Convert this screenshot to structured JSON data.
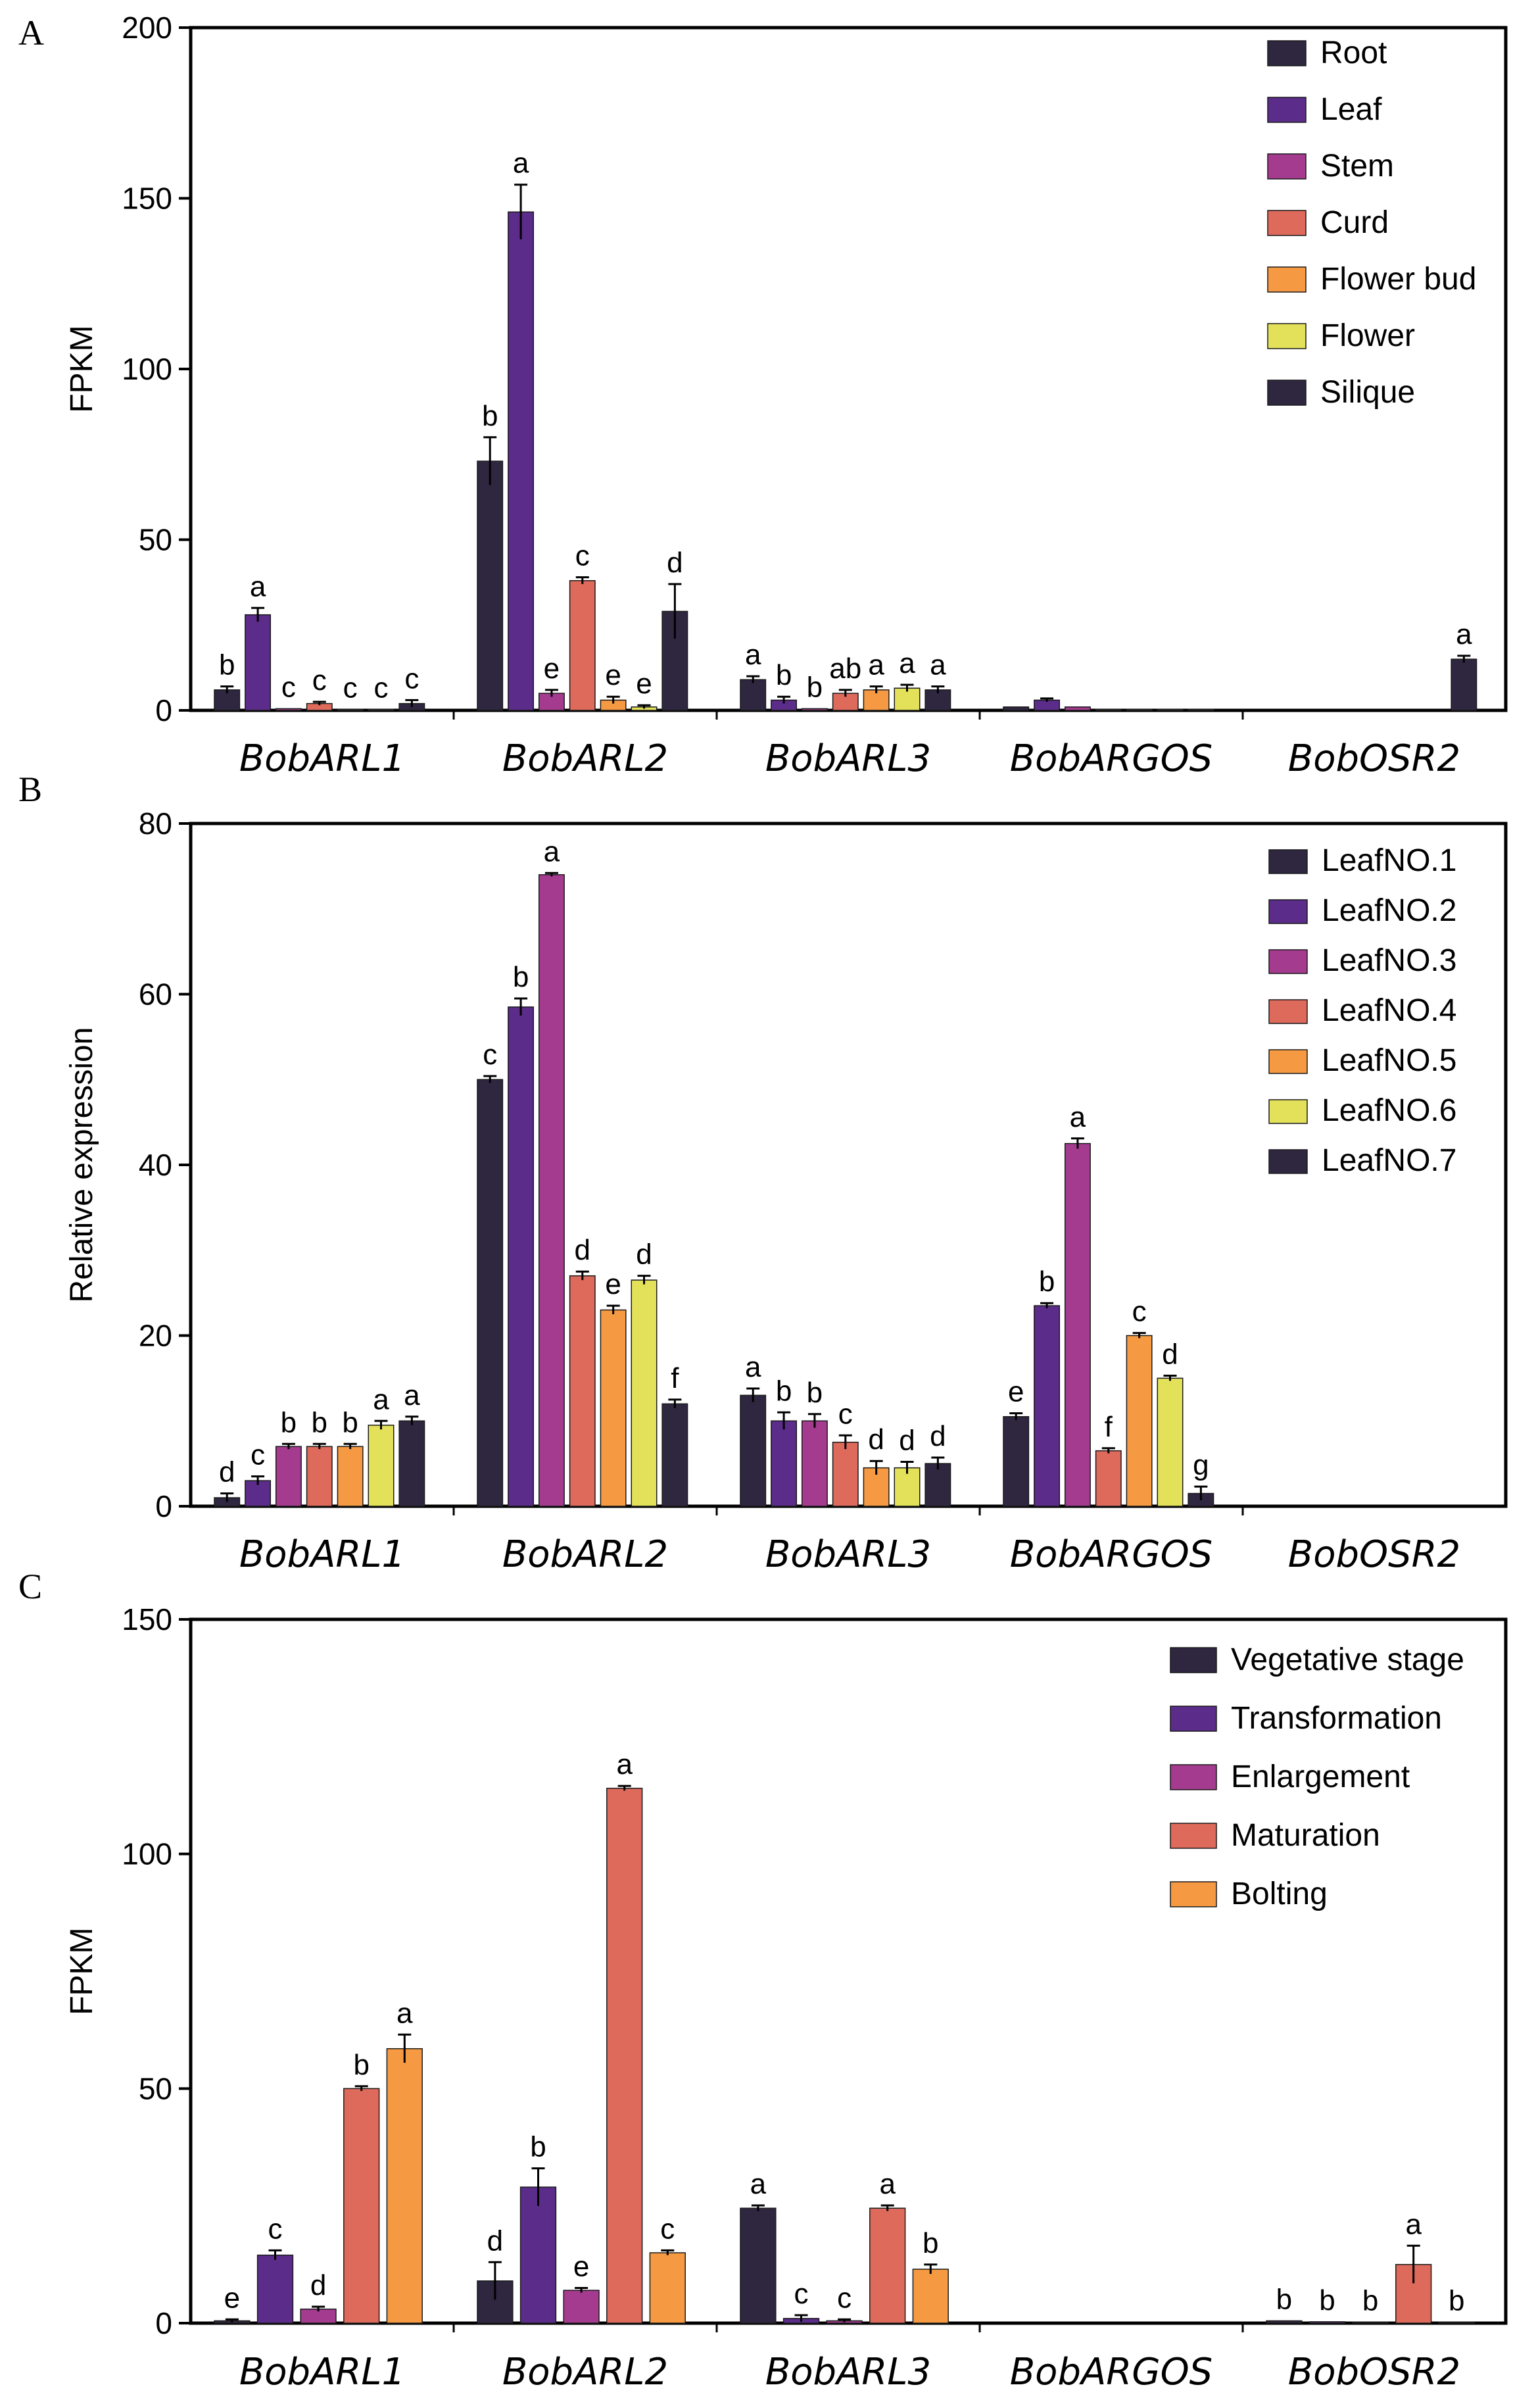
{
  "chart_data": [
    {
      "panel": "A",
      "type": "bar",
      "ylabel": "FPKM",
      "ylim": [
        0,
        200
      ],
      "yticks": [
        0,
        50,
        100,
        150,
        200
      ],
      "categories": [
        "BobARL1",
        "BobARL2",
        "BobARL3",
        "BobARGOS",
        "BobOSR2"
      ],
      "legend_position": "top-right",
      "series": [
        {
          "name": "Root",
          "color": "#2f2640",
          "values": [
            6,
            73,
            9,
            1,
            0
          ],
          "errors": [
            1,
            7,
            1,
            0,
            0
          ],
          "letters": [
            "b",
            "b",
            "a",
            "",
            ""
          ]
        },
        {
          "name": "Leaf",
          "color": "#5b2c8a",
          "values": [
            28,
            146,
            3,
            3,
            0
          ],
          "errors": [
            2,
            8,
            1,
            0.5,
            0
          ],
          "letters": [
            "a",
            "a",
            "b",
            "",
            ""
          ]
        },
        {
          "name": "Stem",
          "color": "#a43b8f",
          "values": [
            0.5,
            5,
            0.5,
            1,
            0
          ],
          "errors": [
            0,
            1,
            0,
            0,
            0
          ],
          "letters": [
            "c",
            "e",
            "b",
            "",
            ""
          ]
        },
        {
          "name": "Curd",
          "color": "#de6a5c",
          "values": [
            2,
            38,
            5,
            0.3,
            0
          ],
          "errors": [
            0.5,
            1,
            1,
            0,
            0
          ],
          "letters": [
            "c",
            "c",
            "ab",
            "",
            ""
          ]
        },
        {
          "name": "Flower bud",
          "color": "#f59a42",
          "values": [
            0.3,
            3,
            6,
            0.3,
            0
          ],
          "errors": [
            0,
            1,
            1,
            0,
            0
          ],
          "letters": [
            "c",
            "e",
            "a",
            "",
            ""
          ]
        },
        {
          "name": "Flower",
          "color": "#e3e15a",
          "values": [
            0.3,
            1,
            6.5,
            0.3,
            0
          ],
          "errors": [
            0,
            0.5,
            1,
            0,
            0
          ],
          "letters": [
            "c",
            "e",
            "a",
            "",
            ""
          ]
        },
        {
          "name": "Silique",
          "color": "#2f2640",
          "values": [
            2,
            29,
            6,
            0.3,
            15
          ],
          "errors": [
            1,
            8,
            1,
            0,
            1
          ],
          "letters": [
            "c",
            "d",
            "a",
            "",
            "a"
          ]
        }
      ]
    },
    {
      "panel": "B",
      "type": "bar",
      "ylabel": "Relative expression",
      "ylim": [
        0,
        80
      ],
      "yticks": [
        0,
        20,
        40,
        60,
        80
      ],
      "categories": [
        "BobARL1",
        "BobARL2",
        "BobARL3",
        "BobARGOS",
        "BobOSR2"
      ],
      "legend_position": "top-right",
      "series": [
        {
          "name": "LeafNO.1",
          "color": "#2f2640",
          "values": [
            1,
            50,
            13,
            10.5,
            0
          ],
          "errors": [
            0.5,
            0.4,
            0.8,
            0.4,
            0
          ],
          "letters": [
            "d",
            "c",
            "a",
            "e",
            ""
          ]
        },
        {
          "name": "LeafNO.2",
          "color": "#5b2c8a",
          "values": [
            3,
            58.5,
            10,
            23.5,
            0
          ],
          "errors": [
            0.5,
            1,
            1,
            0.3,
            0
          ],
          "letters": [
            "c",
            "b",
            "b",
            "b",
            ""
          ]
        },
        {
          "name": "LeafNO.3",
          "color": "#a43b8f",
          "values": [
            7,
            74,
            10,
            42.5,
            0
          ],
          "errors": [
            0.3,
            0.2,
            0.8,
            0.6,
            0
          ],
          "letters": [
            "b",
            "a",
            "b",
            "a",
            ""
          ]
        },
        {
          "name": "LeafNO.4",
          "color": "#de6a5c",
          "values": [
            7,
            27,
            7.5,
            6.5,
            0
          ],
          "errors": [
            0.3,
            0.5,
            0.8,
            0.3,
            0
          ],
          "letters": [
            "b",
            "d",
            "c",
            "f",
            ""
          ]
        },
        {
          "name": "LeafNO.5",
          "color": "#f59a42",
          "values": [
            7,
            23,
            4.5,
            20,
            0
          ],
          "errors": [
            0.3,
            0.5,
            0.8,
            0.3,
            0
          ],
          "letters": [
            "b",
            "e",
            "d",
            "c",
            ""
          ]
        },
        {
          "name": "LeafNO.6",
          "color": "#e3e15a",
          "values": [
            9.5,
            26.5,
            4.5,
            15,
            0
          ],
          "errors": [
            0.5,
            0.5,
            0.7,
            0.3,
            0
          ],
          "letters": [
            "a",
            "d",
            "d",
            "d",
            ""
          ]
        },
        {
          "name": "LeafNO.7",
          "color": "#2f2640",
          "values": [
            10,
            12,
            5,
            1.5,
            0
          ],
          "errors": [
            0.5,
            0.5,
            0.7,
            0.8,
            0
          ],
          "letters": [
            "a",
            "f",
            "d",
            "g",
            ""
          ]
        }
      ]
    },
    {
      "panel": "C",
      "type": "bar",
      "ylabel": "FPKM",
      "ylim": [
        0,
        150
      ],
      "yticks": [
        0,
        50,
        100,
        150
      ],
      "categories": [
        "BobARL1",
        "BobARL2",
        "BobARL3",
        "BobARGOS",
        "BobOSR2"
      ],
      "legend_position": "top-right",
      "series": [
        {
          "name": "Vegetative stage",
          "color": "#2f2640",
          "values": [
            0.5,
            9,
            24.5,
            0,
            0.5
          ],
          "errors": [
            0.3,
            4,
            0.6,
            0,
            0
          ],
          "letters": [
            "e",
            "d",
            "a",
            "",
            "b"
          ]
        },
        {
          "name": "Transformation",
          "color": "#5b2c8a",
          "values": [
            14.5,
            29,
            1,
            0,
            0.3
          ],
          "errors": [
            1,
            4,
            0.7,
            0,
            0
          ],
          "letters": [
            "c",
            "b",
            "c",
            "",
            "b"
          ]
        },
        {
          "name": "Enlargement",
          "color": "#a43b8f",
          "values": [
            3,
            7,
            0.5,
            0,
            0.2
          ],
          "errors": [
            0.5,
            0.5,
            0.3,
            0,
            0
          ],
          "letters": [
            "d",
            "e",
            "c",
            "",
            "b"
          ]
        },
        {
          "name": "Maturation",
          "color": "#de6a5c",
          "values": [
            50,
            114,
            24.5,
            0,
            12.5
          ],
          "errors": [
            0.5,
            0.5,
            0.6,
            0,
            4
          ],
          "letters": [
            "b",
            "a",
            "a",
            "",
            "a"
          ]
        },
        {
          "name": "Bolting",
          "color": "#f59a42",
          "values": [
            58.5,
            15,
            11.5,
            0,
            0.2
          ],
          "errors": [
            3,
            0.5,
            1,
            0,
            0
          ],
          "letters": [
            "a",
            "c",
            "b",
            "",
            "b"
          ]
        }
      ]
    }
  ],
  "panel_labels": [
    "A",
    "B",
    "C"
  ]
}
